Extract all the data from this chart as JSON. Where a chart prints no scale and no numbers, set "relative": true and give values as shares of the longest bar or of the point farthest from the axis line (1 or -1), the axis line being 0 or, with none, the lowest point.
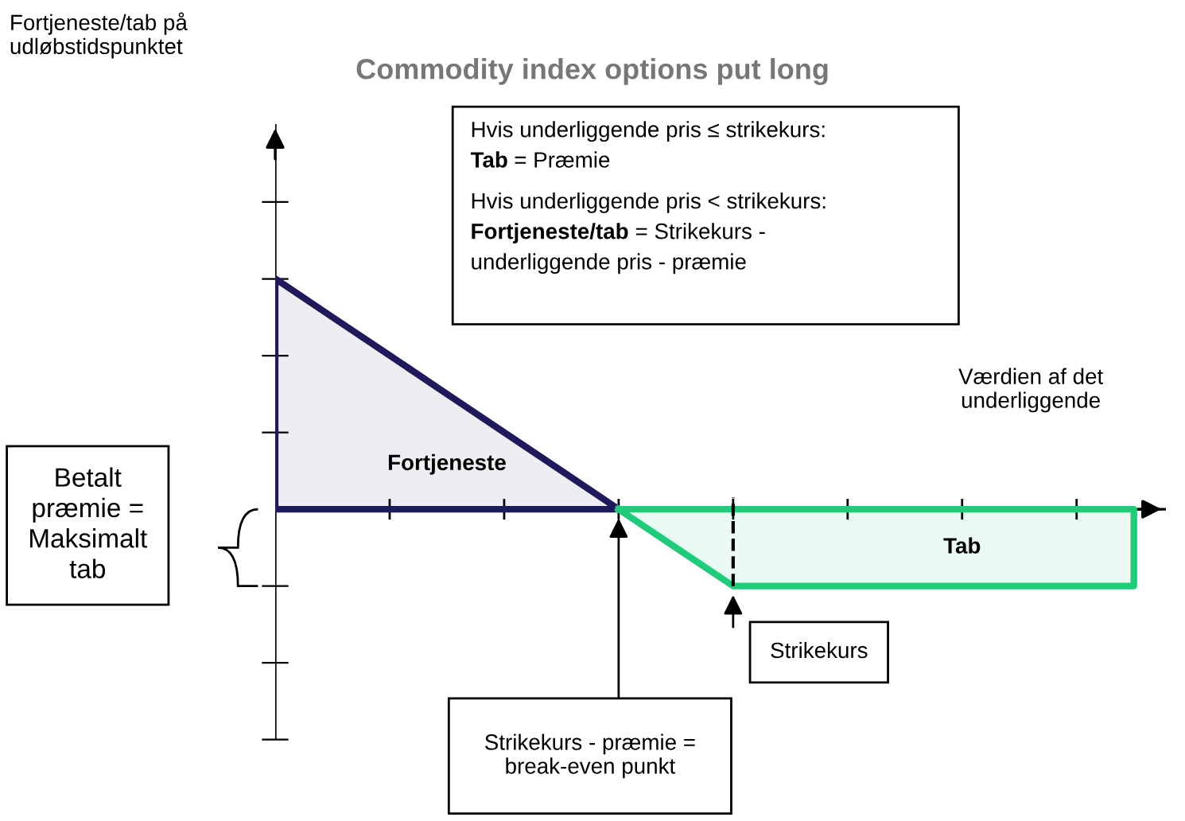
{
  "chart_data": {
    "type": "area",
    "relative": true,
    "title": "Commodity index options put long",
    "xlabel": "Værdien af det\nunderliggende",
    "categories": [
      null,
      null,
      null,
      null,
      null,
      null,
      null,
      null,
      null,
      null,
      null,
      null,
      null,
      null,
      null,
      null
    ],
    "series": [
      {
        "name": "Fortjeneste",
        "color": "#1f1a5c",
        "values": [
          1,
          0.833,
          0.667,
          0.5,
          0.333,
          0.167,
          0,
          null,
          null,
          null,
          null,
          null,
          null,
          null,
          null,
          null
        ]
      },
      {
        "name": "Tab",
        "color": "#1fcc7a",
        "values": [
          null,
          null,
          null,
          null,
          null,
          null,
          0,
          -0.167,
          -0.333,
          -0.333,
          -0.333,
          -0.333,
          -0.333,
          -0.333,
          -0.333,
          -0.333
        ]
      }
    ],
    "annotations": [
      "Hvis underliggende pris ≤ strikekurs:\nTab = Præmie\nHvis underliggende pris < strikekurs:\nFortjeneste/tab = Strikekurs -\nunderliggende pris - præmie",
      "Betalt\npræmie =\nMaksimalt\ntab",
      "Strikekurs - præmie =\nbreak-even punkt",
      "Strikekurs",
      "Fortjeneste/tab på\nudløbstidspunktet"
    ],
    "legend": false
  }
}
